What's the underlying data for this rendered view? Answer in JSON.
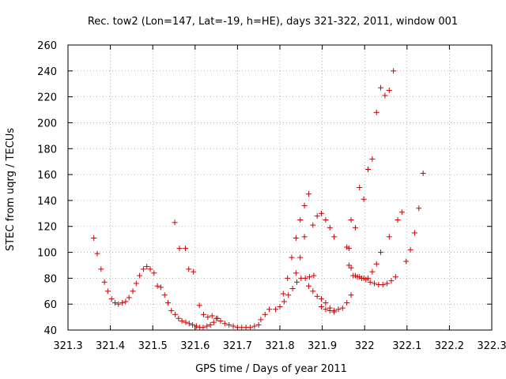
{
  "chart_data": {
    "type": "scatter",
    "title": "Rec. tow2 (Lon=147, Lat=-19, h=HE), days 321-322, 2011, window 001",
    "xlabel": "GPS time / Days of year 2011",
    "ylabel": "STEC from uqrg / TECUs",
    "xlim": [
      321.3,
      322.3
    ],
    "ylim": [
      40,
      260
    ],
    "x_ticks": [
      "321.3",
      "321.4",
      "321.5",
      "321.6",
      "321.7",
      "321.8",
      "321.9",
      "322",
      "322.1",
      "322.2",
      "322.3"
    ],
    "y_ticks": [
      "40",
      "60",
      "80",
      "100",
      "120",
      "140",
      "160",
      "180",
      "200",
      "220",
      "240",
      "260"
    ],
    "grid": true,
    "marker": "plus",
    "color": "#cc0000",
    "points": [
      [
        321.361,
        111
      ],
      [
        321.369,
        99
      ],
      [
        321.378,
        87
      ],
      [
        321.386,
        77
      ],
      [
        321.394,
        70
      ],
      [
        321.403,
        64
      ],
      [
        321.411,
        61
      ],
      [
        321.419,
        60
      ],
      [
        321.428,
        61
      ],
      [
        321.436,
        62
      ],
      [
        321.444,
        65
      ],
      [
        321.453,
        70
      ],
      [
        321.461,
        76
      ],
      [
        321.469,
        82
      ],
      [
        321.478,
        87
      ],
      [
        321.486,
        89
      ],
      [
        321.494,
        87
      ],
      [
        321.503,
        84
      ],
      [
        321.511,
        74
      ],
      [
        321.519,
        73
      ],
      [
        321.528,
        67
      ],
      [
        321.536,
        61
      ],
      [
        321.544,
        55
      ],
      [
        321.553,
        52
      ],
      [
        321.561,
        49
      ],
      [
        321.569,
        47
      ],
      [
        321.578,
        46
      ],
      [
        321.586,
        45
      ],
      [
        321.594,
        44
      ],
      [
        321.603,
        43
      ],
      [
        321.611,
        42
      ],
      [
        321.619,
        42
      ],
      [
        321.628,
        43
      ],
      [
        321.636,
        44
      ],
      [
        321.644,
        46
      ],
      [
        321.653,
        49
      ],
      [
        321.552,
        123
      ],
      [
        321.563,
        103
      ],
      [
        321.577,
        103
      ],
      [
        321.585,
        87
      ],
      [
        321.596,
        85
      ],
      [
        321.61,
        59
      ],
      [
        321.62,
        52
      ],
      [
        321.63,
        50
      ],
      [
        321.64,
        51
      ],
      [
        321.65,
        49
      ],
      [
        321.66,
        47
      ],
      [
        321.67,
        45
      ],
      [
        321.68,
        44
      ],
      [
        321.69,
        43
      ],
      [
        321.7,
        42
      ],
      [
        321.71,
        42
      ],
      [
        321.72,
        42
      ],
      [
        321.73,
        42
      ],
      [
        321.74,
        43
      ],
      [
        321.75,
        44
      ],
      [
        321.755,
        48
      ],
      [
        321.765,
        52
      ],
      [
        321.775,
        56
      ],
      [
        321.79,
        56
      ],
      [
        321.8,
        58
      ],
      [
        321.81,
        62
      ],
      [
        321.82,
        67
      ],
      [
        321.83,
        72
      ],
      [
        321.84,
        77
      ],
      [
        321.85,
        80
      ],
      [
        321.86,
        80
      ],
      [
        321.87,
        81
      ],
      [
        321.88,
        82
      ],
      [
        321.808,
        68
      ],
      [
        321.818,
        80
      ],
      [
        321.828,
        96
      ],
      [
        321.838,
        111
      ],
      [
        321.848,
        125
      ],
      [
        321.858,
        136
      ],
      [
        321.868,
        145
      ],
      [
        321.878,
        121
      ],
      [
        321.888,
        128
      ],
      [
        321.898,
        130
      ],
      [
        321.908,
        125
      ],
      [
        321.918,
        119
      ],
      [
        321.928,
        112
      ],
      [
        321.838,
        84
      ],
      [
        321.848,
        96
      ],
      [
        321.858,
        112
      ],
      [
        321.868,
        74
      ],
      [
        321.878,
        70
      ],
      [
        321.888,
        66
      ],
      [
        321.898,
        64
      ],
      [
        321.908,
        61
      ],
      [
        321.918,
        57
      ],
      [
        321.928,
        55
      ],
      [
        321.938,
        56
      ],
      [
        321.948,
        57
      ],
      [
        321.958,
        61
      ],
      [
        321.968,
        67
      ],
      [
        321.898,
        58
      ],
      [
        321.908,
        56
      ],
      [
        321.918,
        55
      ],
      [
        321.928,
        54
      ],
      [
        321.958,
        104
      ],
      [
        321.963,
        103
      ],
      [
        321.968,
        125
      ],
      [
        321.978,
        119
      ],
      [
        321.988,
        150
      ],
      [
        321.998,
        141
      ],
      [
        322.008,
        164
      ],
      [
        322.018,
        172
      ],
      [
        322.028,
        208
      ],
      [
        322.038,
        227
      ],
      [
        322.048,
        221
      ],
      [
        322.058,
        225
      ],
      [
        322.068,
        240
      ],
      [
        321.963,
        90
      ],
      [
        321.973,
        82
      ],
      [
        321.983,
        81
      ],
      [
        321.993,
        80
      ],
      [
        322.003,
        79
      ],
      [
        322.013,
        77
      ],
      [
        322.023,
        76
      ],
      [
        322.033,
        75
      ],
      [
        322.043,
        75
      ],
      [
        322.053,
        76
      ],
      [
        322.063,
        78
      ],
      [
        322.073,
        81
      ],
      [
        321.968,
        88
      ],
      [
        321.978,
        82
      ],
      [
        321.988,
        81
      ],
      [
        321.998,
        80
      ],
      [
        322.008,
        80
      ],
      [
        322.018,
        85
      ],
      [
        322.028,
        91
      ],
      [
        322.038,
        100
      ],
      [
        322.058,
        112
      ],
      [
        322.078,
        125
      ],
      [
        322.088,
        131
      ],
      [
        322.098,
        93
      ],
      [
        322.108,
        102
      ],
      [
        322.118,
        115
      ],
      [
        322.128,
        134
      ],
      [
        322.138,
        161
      ]
    ]
  }
}
